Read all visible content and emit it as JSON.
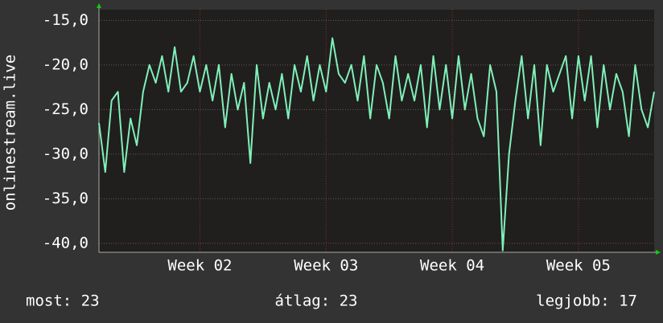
{
  "chart_data": {
    "type": "line",
    "y_label": "onlinestream.live",
    "footer": [
      "most: 23",
      "átlag: 23",
      "legjobb: 17"
    ],
    "x": [
      1.2,
      1.25,
      1.3,
      1.35,
      1.4,
      1.45,
      1.5,
      1.55,
      1.6,
      1.65,
      1.7,
      1.75,
      1.8,
      1.85,
      1.9,
      1.95,
      2.0,
      2.05,
      2.1,
      2.15,
      2.2,
      2.25,
      2.3,
      2.35,
      2.4,
      2.45,
      2.5,
      2.55,
      2.6,
      2.65,
      2.7,
      2.75,
      2.8,
      2.85,
      2.9,
      2.95,
      3.0,
      3.05,
      3.1,
      3.15,
      3.2,
      3.25,
      3.3,
      3.35,
      3.4,
      3.45,
      3.5,
      3.55,
      3.6,
      3.65,
      3.7,
      3.75,
      3.8,
      3.85,
      3.9,
      3.95,
      4.0,
      4.05,
      4.1,
      4.15,
      4.2,
      4.25,
      4.3,
      4.35,
      4.4,
      4.45,
      4.5,
      4.55,
      4.6,
      4.65,
      4.7,
      4.75,
      4.8,
      4.85,
      4.9,
      4.95,
      5.0,
      5.05,
      5.1,
      5.15,
      5.2,
      5.25,
      5.3,
      5.35,
      5.4,
      5.45,
      5.5,
      5.55,
      5.6
    ],
    "series": [
      {
        "color": "#7ff0b8",
        "values": [
          -26.5,
          -32,
          -24,
          -23,
          -32,
          -26,
          -29,
          -23,
          -20,
          -22,
          -19,
          -23,
          -18,
          -23,
          -22,
          -19,
          -23,
          -20,
          -24,
          -20,
          -27,
          -21,
          -25,
          -22,
          -31,
          -20,
          -26,
          -22,
          -25,
          -21,
          -26,
          -20,
          -23,
          -19,
          -24,
          -20,
          -23,
          -17,
          -21,
          -22,
          -20,
          -24,
          -19,
          -26,
          -20,
          -22,
          -26,
          -19,
          -24,
          -21,
          -24,
          -20,
          -27,
          -19,
          -25,
          -20,
          -26,
          -19,
          -25,
          -21,
          -26,
          -28,
          -20,
          -23,
          -40.8,
          -30,
          -24,
          -19,
          -26,
          -20,
          -29,
          -20,
          -23,
          -21,
          -19,
          -26,
          -19,
          -24,
          -19,
          -27,
          -20,
          -25,
          -21,
          -23,
          -28,
          -20,
          -25,
          -27,
          -23
        ]
      }
    ],
    "xlim": [
      1.2,
      5.6
    ],
    "xticks": [
      {
        "value": 2,
        "label": "Week 02"
      },
      {
        "value": 3,
        "label": "Week 03"
      },
      {
        "value": 4,
        "label": "Week 04"
      },
      {
        "value": 5,
        "label": "Week 05"
      }
    ],
    "ylim": [
      -41,
      -13.8
    ],
    "yticks": [
      {
        "value": -15,
        "label": "-15,0"
      },
      {
        "value": -20,
        "label": "-20,0"
      },
      {
        "value": -25,
        "label": "-25,0"
      },
      {
        "value": -30,
        "label": "-30,0"
      },
      {
        "value": -35,
        "label": "-35,0"
      },
      {
        "value": -40,
        "label": "-40,0"
      }
    ],
    "grid": true
  }
}
